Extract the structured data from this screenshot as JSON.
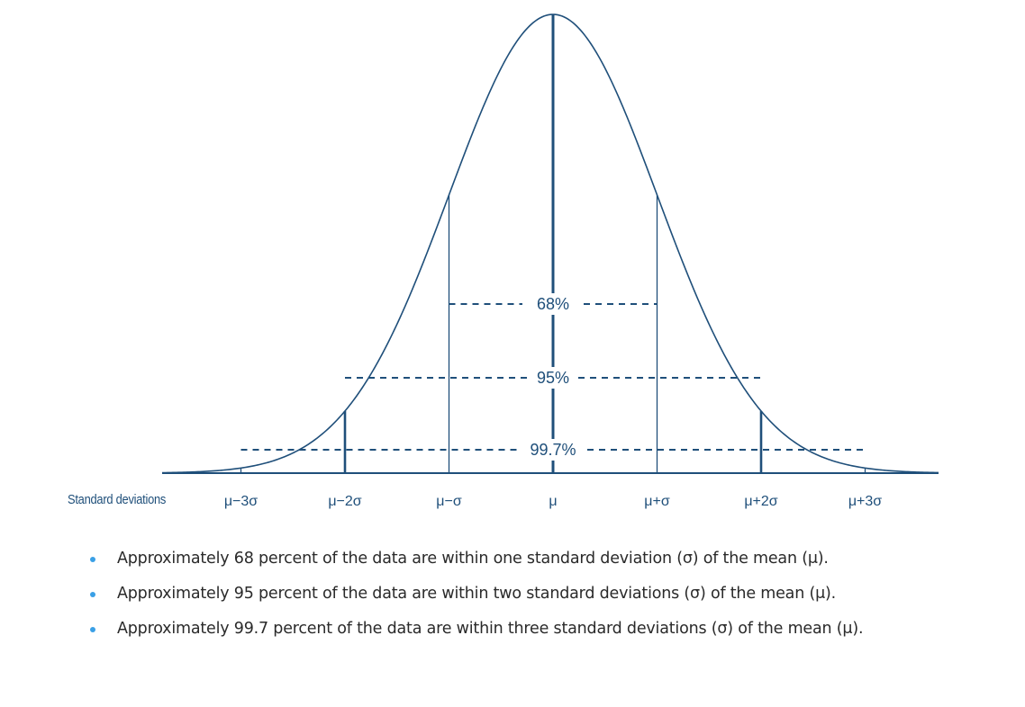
{
  "diagram": {
    "axis_caption": "Standard deviations",
    "tick_labels": [
      "μ−3σ",
      "μ−2σ",
      "μ−σ",
      "μ",
      "μ+σ",
      "μ+2σ",
      "μ+3σ"
    ],
    "ranges": [
      {
        "label": "68%",
        "sigma": 1
      },
      {
        "label": "95%",
        "sigma": 2
      },
      {
        "label": "99.7%",
        "sigma": 3
      }
    ],
    "colors": {
      "line": "#1f4f7a",
      "bullet": "#3aa0e6",
      "text": "#2a2a2a"
    }
  },
  "bullets": [
    "Approximately 68 percent of the data are within one standard deviation (σ) of the mean (μ).",
    "Approximately 95 percent of the data are within two standard deviations (σ) of the mean (μ).",
    "Approximately 99.7 percent of the data are within three standard deviations (σ) of the mean (μ)."
  ]
}
